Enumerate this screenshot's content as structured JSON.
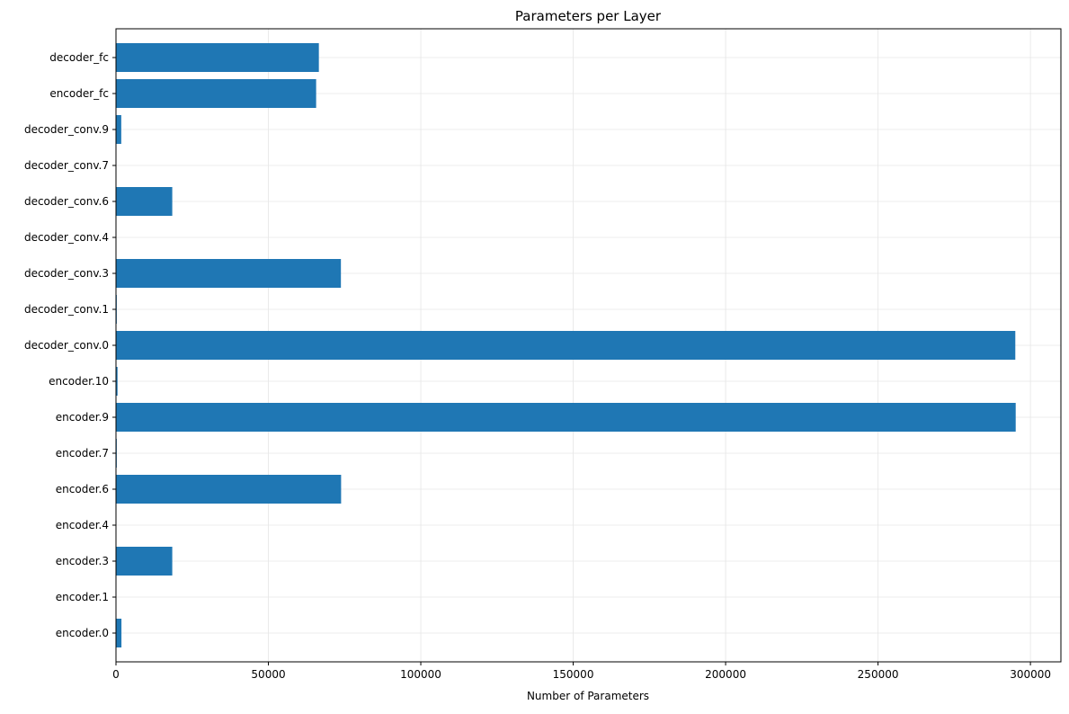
{
  "chart_data": {
    "type": "bar",
    "orientation": "horizontal",
    "title": "Parameters per Layer",
    "xlabel": "Number of Parameters",
    "ylabel": "",
    "categories": [
      "encoder.0",
      "encoder.1",
      "encoder.3",
      "encoder.4",
      "encoder.6",
      "encoder.7",
      "encoder.9",
      "encoder.10",
      "decoder_conv.0",
      "decoder_conv.1",
      "decoder_conv.3",
      "decoder_conv.4",
      "decoder_conv.6",
      "decoder_conv.7",
      "decoder_conv.9",
      "encoder_fc",
      "decoder_fc"
    ],
    "values": [
      1792,
      128,
      18464,
      64,
      73856,
      256,
      295168,
      512,
      295040,
      256,
      73792,
      128,
      18464,
      64,
      1731,
      65664,
      66560
    ],
    "xlim": [
      0,
      310000
    ],
    "xticks": [
      0,
      50000,
      100000,
      150000,
      200000,
      250000,
      300000
    ],
    "xtick_labels": [
      "0",
      "50000",
      "100000",
      "150000",
      "200000",
      "250000",
      "300000"
    ],
    "grid": true,
    "legend": "none",
    "bar_color": "#1f77b4"
  }
}
